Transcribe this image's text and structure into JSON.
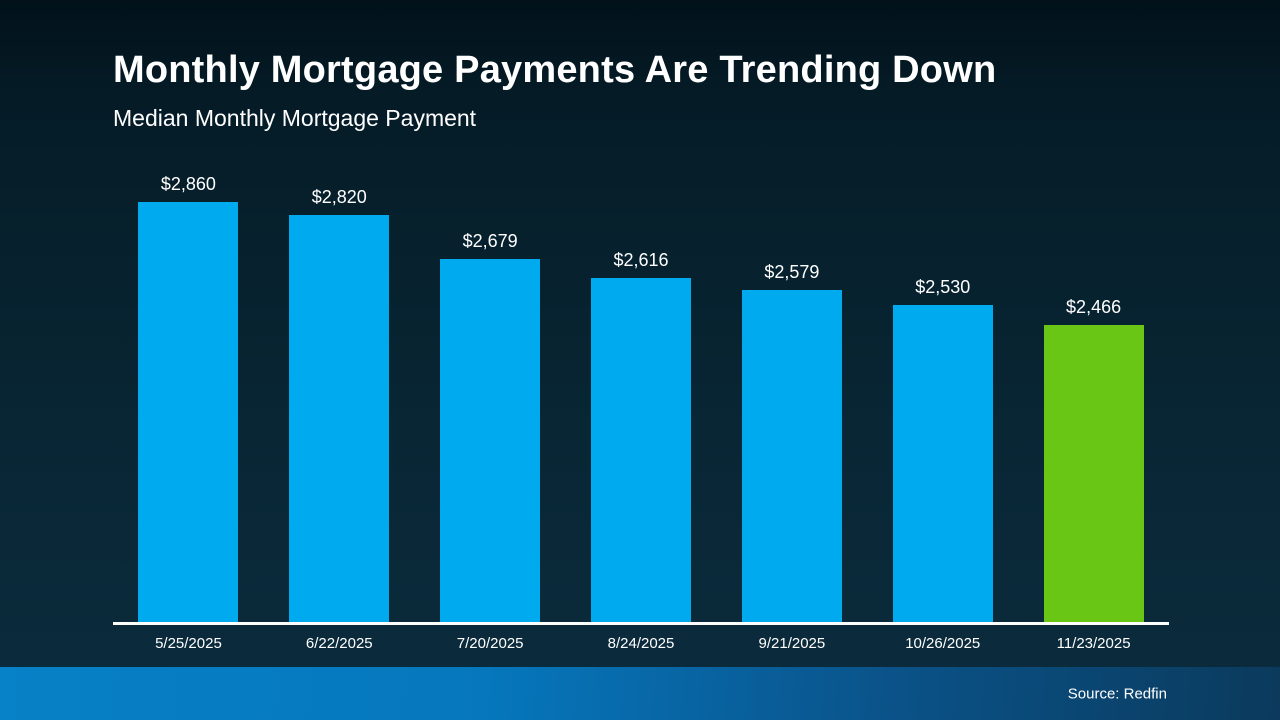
{
  "header": {
    "title": "Monthly Mortgage Payments Are Trending Down",
    "subtitle": "Median Monthly Mortgage Payment"
  },
  "footer": {
    "source": "Source: Redfin"
  },
  "colors": {
    "bar": "#00aaee",
    "highlight": "#6ac614",
    "axis": "#ffffff",
    "background_top": "#02111a",
    "background_bottom": "#0b2c3d",
    "footer_left": "#0781c7",
    "footer_right": "#0b3a5c"
  },
  "chart_data": {
    "type": "bar",
    "title": "Monthly Mortgage Payments Are Trending Down",
    "subtitle": "Median Monthly Mortgage Payment",
    "categories": [
      "5/25/2025",
      "6/22/2025",
      "7/20/2025",
      "8/24/2025",
      "9/21/2025",
      "10/26/2025",
      "11/23/2025"
    ],
    "values": [
      2860,
      2820,
      2679,
      2616,
      2579,
      2530,
      2466
    ],
    "value_labels": [
      "$2,860",
      "$2,820",
      "$2,679",
      "$2,616",
      "$2,579",
      "$2,530",
      "$2,466"
    ],
    "highlight_index": 6,
    "xlabel": "",
    "ylabel": "",
    "ylim": [
      1510,
      2880
    ],
    "grid": false,
    "legend": "none",
    "source": "Source: Redfin"
  }
}
